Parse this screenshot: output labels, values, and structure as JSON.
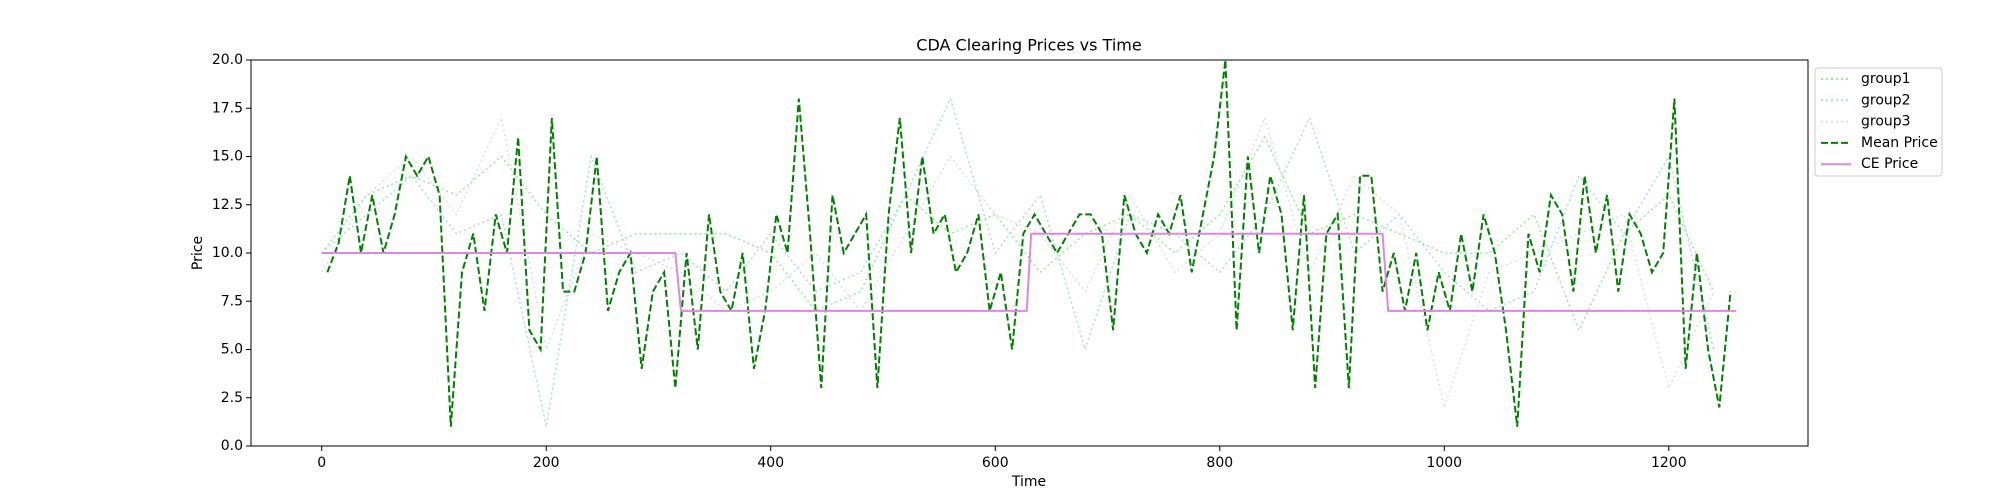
{
  "chart_data": {
    "type": "line",
    "title": "CDA Clearing Prices vs Time",
    "x_label": "Time",
    "y_label": "Price",
    "xlim": [
      -63,
      1324
    ],
    "ylim": [
      0,
      20
    ],
    "xticks": [
      0,
      200,
      400,
      600,
      800,
      1000,
      1200
    ],
    "yticks": [
      {
        "value": 0,
        "label": "0.0"
      },
      {
        "value": 2.5,
        "label": "2.5"
      },
      {
        "value": 5,
        "label": "5.0"
      },
      {
        "value": 7.5,
        "label": "7.5"
      },
      {
        "value": 10,
        "label": "10.0"
      },
      {
        "value": 12.5,
        "label": "12.5"
      },
      {
        "value": 15,
        "label": "15.0"
      },
      {
        "value": 17.5,
        "label": "17.5"
      },
      {
        "value": 20,
        "label": "20.0"
      }
    ],
    "series": [
      {
        "name": "group1",
        "color": "#90ee90",
        "linestyle": "dotted",
        "x": [
          0,
          40,
          80,
          120,
          160,
          200,
          240,
          280,
          320,
          360,
          400,
          440,
          480,
          520,
          560,
          600,
          640,
          680,
          720,
          760,
          800,
          840,
          880,
          920,
          960,
          1000,
          1040,
          1080,
          1120,
          1160,
          1200,
          1240
        ],
        "values": [
          10,
          13,
          14,
          13,
          15,
          12,
          10,
          11,
          11,
          11,
          10,
          7,
          8,
          13,
          11,
          12,
          9,
          11,
          12,
          10,
          12,
          16,
          11,
          12,
          11,
          10,
          10,
          12,
          6,
          11,
          13,
          8
        ]
      },
      {
        "name": "group2",
        "color": "#add8e6",
        "linestyle": "dotted",
        "x": [
          0,
          40,
          80,
          120,
          160,
          200,
          240,
          280,
          320,
          360,
          400,
          440,
          480,
          520,
          560,
          600,
          640,
          680,
          720,
          760,
          800,
          840,
          880,
          920,
          960,
          1000,
          1040,
          1080,
          1120,
          1160,
          1200,
          1240
        ],
        "values": [
          10,
          12,
          14,
          11,
          12,
          1,
          15,
          9,
          10,
          8,
          11,
          8,
          9,
          13,
          18,
          10,
          13,
          5,
          12,
          11,
          9,
          12,
          17,
          10,
          12,
          9,
          7,
          8,
          14,
          11,
          15,
          5
        ]
      },
      {
        "name": "group3",
        "color": "#dcdcf0",
        "linestyle": "dotted",
        "x": [
          0,
          40,
          80,
          120,
          160,
          200,
          240,
          280,
          320,
          360,
          400,
          440,
          480,
          520,
          560,
          600,
          640,
          680,
          720,
          760,
          800,
          840,
          880,
          920,
          960,
          1000,
          1040,
          1080,
          1120,
          1160,
          1200,
          1240
        ],
        "values": [
          9,
          13,
          15,
          12,
          17,
          5,
          11,
          10,
          9,
          7,
          8,
          10,
          7,
          11,
          15,
          12,
          11,
          8,
          13,
          9,
          11,
          17,
          9,
          14,
          12,
          2,
          9,
          10,
          11,
          12,
          3,
          8
        ]
      },
      {
        "name": "Mean Price",
        "color": "#008000",
        "linestyle": "dashed",
        "x": [
          5,
          15,
          25,
          35,
          45,
          55,
          65,
          75,
          85,
          95,
          105,
          115,
          125,
          135,
          145,
          155,
          165,
          175,
          185,
          195,
          205,
          215,
          225,
          235,
          245,
          255,
          265,
          275,
          285,
          295,
          305,
          315,
          325,
          335,
          345,
          355,
          365,
          375,
          385,
          395,
          405,
          415,
          425,
          435,
          445,
          455,
          465,
          475,
          485,
          495,
          505,
          515,
          525,
          535,
          545,
          555,
          565,
          575,
          585,
          595,
          605,
          615,
          625,
          635,
          645,
          655,
          665,
          675,
          685,
          695,
          705,
          715,
          725,
          735,
          745,
          755,
          765,
          775,
          785,
          795,
          805,
          815,
          825,
          835,
          845,
          855,
          865,
          875,
          885,
          895,
          905,
          915,
          925,
          935,
          945,
          955,
          965,
          975,
          985,
          995,
          1005,
          1015,
          1025,
          1035,
          1045,
          1055,
          1065,
          1075,
          1085,
          1095,
          1105,
          1115,
          1125,
          1135,
          1145,
          1155,
          1165,
          1175,
          1185,
          1195,
          1205,
          1215,
          1225,
          1235,
          1245,
          1255
        ],
        "values": [
          9,
          10.5,
          14,
          10,
          13,
          10,
          12,
          15,
          14,
          15,
          13,
          1,
          9,
          11,
          7,
          12,
          10,
          16,
          6,
          5,
          17,
          8,
          8,
          10,
          15,
          7,
          9,
          10,
          4,
          8,
          9,
          3,
          10,
          5,
          12,
          8,
          7,
          10,
          4,
          7,
          12,
          10,
          18,
          11,
          3,
          13,
          10,
          11,
          12,
          3,
          12,
          17,
          10,
          15,
          11,
          12,
          9,
          10,
          12,
          7,
          9,
          5,
          11,
          12,
          11,
          10,
          11,
          12,
          12,
          11,
          6,
          13,
          11,
          10,
          12,
          11,
          13,
          9,
          12,
          15,
          20,
          6,
          15,
          10,
          14,
          12,
          6,
          13,
          3,
          11,
          12,
          3,
          14,
          14,
          8,
          10,
          7,
          10,
          6,
          9,
          7,
          11,
          8,
          12,
          10,
          6,
          1,
          11,
          9,
          13,
          12,
          8,
          14,
          10,
          13,
          8,
          12,
          11,
          9,
          10,
          18,
          4,
          10,
          5,
          2,
          8
        ]
      },
      {
        "name": "CE Price",
        "color": "#dd88dd",
        "linestyle": "solid",
        "x": [
          0,
          315,
          320,
          628,
          632,
          945,
          950,
          1260
        ],
        "values": [
          10,
          10,
          7,
          7,
          11,
          11,
          7,
          7
        ]
      }
    ]
  }
}
